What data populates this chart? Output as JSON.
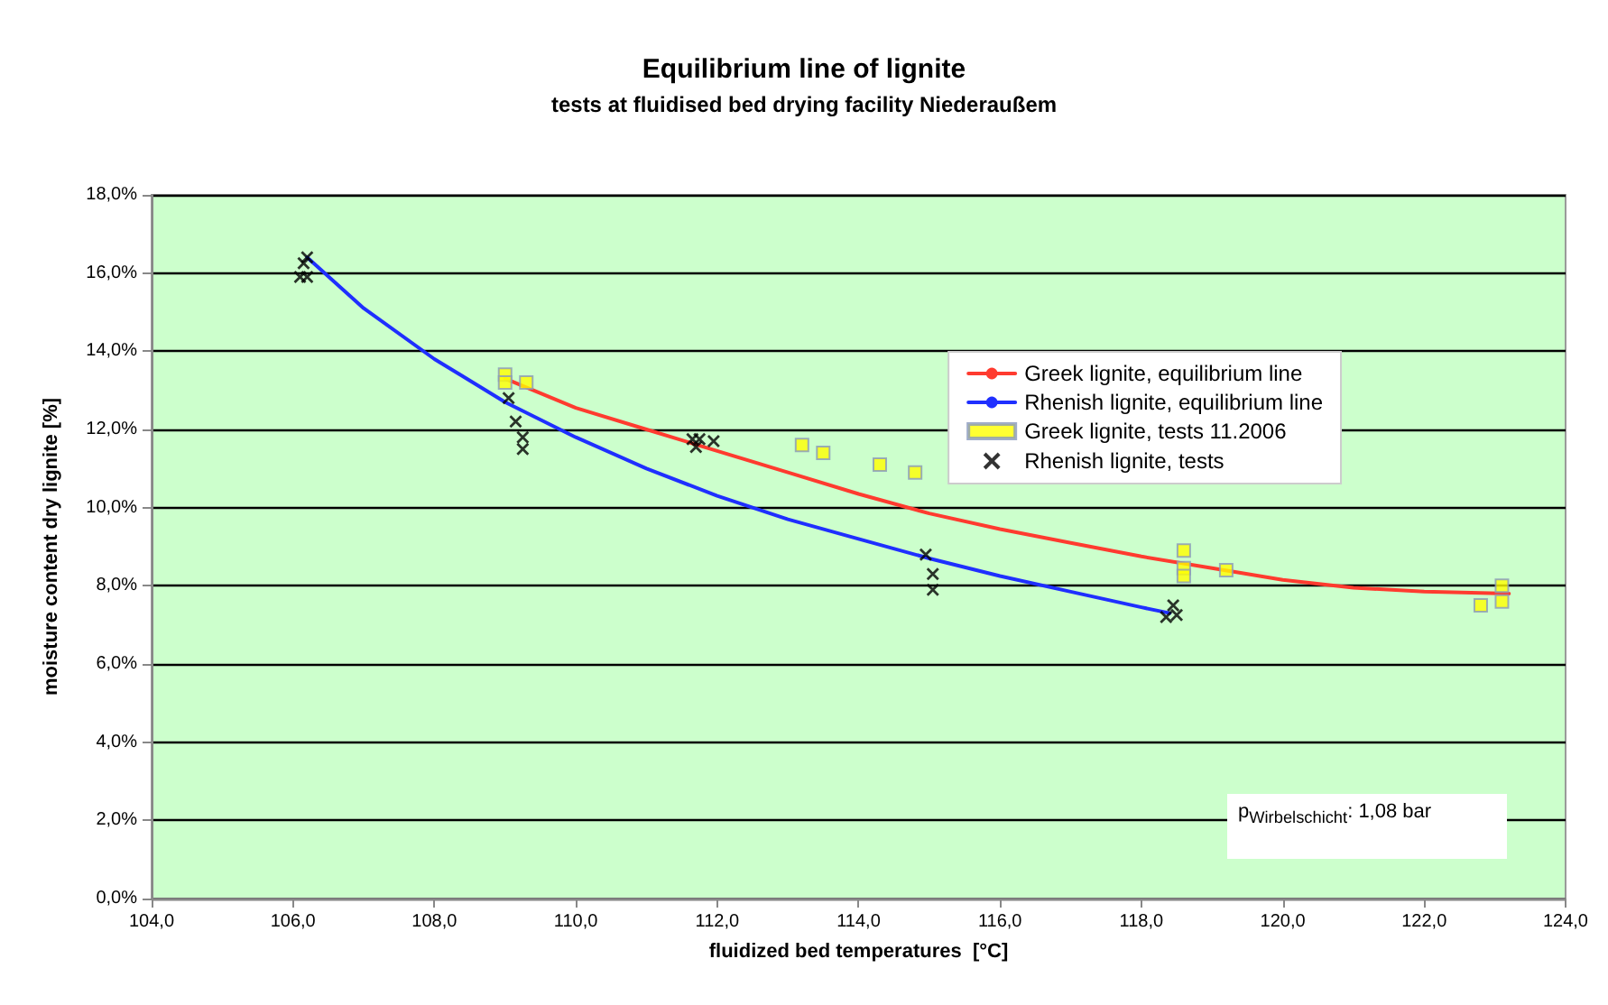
{
  "chart_data": {
    "type": "scatter",
    "title": "Equilibrium line of lignite",
    "subtitle": "tests at fluidised bed drying facility Niederaußem",
    "xlabel": "fluidized bed temperatures  [°C]",
    "ylabel": "moisture content dry lignite [%]",
    "xlim": [
      104,
      124
    ],
    "xticks": [
      {
        "value": 104,
        "label": "104,0"
      },
      {
        "value": 106,
        "label": "106,0"
      },
      {
        "value": 108,
        "label": "108,0"
      },
      {
        "value": 110,
        "label": "110,0"
      },
      {
        "value": 112,
        "label": "112,0"
      },
      {
        "value": 114,
        "label": "114,0"
      },
      {
        "value": 116,
        "label": "116,0"
      },
      {
        "value": 118,
        "label": "118,0"
      },
      {
        "value": 120,
        "label": "120,0"
      },
      {
        "value": 122,
        "label": "122,0"
      },
      {
        "value": 124,
        "label": "124,0"
      }
    ],
    "ylim": [
      0,
      18
    ],
    "yticks": [
      {
        "value": 0,
        "label": "0,0%"
      },
      {
        "value": 2,
        "label": "2,0%"
      },
      {
        "value": 4,
        "label": "4,0%"
      },
      {
        "value": 6,
        "label": "6,0%"
      },
      {
        "value": 8,
        "label": "8,0%"
      },
      {
        "value": 10,
        "label": "10,0%"
      },
      {
        "value": 12,
        "label": "12,0%"
      },
      {
        "value": 14,
        "label": "14,0%"
      },
      {
        "value": 16,
        "label": "16,0%"
      },
      {
        "value": 18,
        "label": "18,0%"
      }
    ],
    "grid": "y",
    "legend": "top right",
    "annotations": [
      "p$_{Wirbelschicht}$: 1,08 bar"
    ],
    "series": [
      {
        "name": "Greek lignite, equilibrium line",
        "type": "line",
        "color": "#ff3b2f",
        "marker": "none",
        "x": [
          109.0,
          110,
          111,
          112,
          113,
          114,
          115,
          116,
          117,
          118,
          119,
          120,
          121,
          122,
          123.2
        ],
        "values": [
          13.3,
          12.55,
          12.0,
          11.45,
          10.9,
          10.35,
          9.85,
          9.45,
          9.1,
          8.75,
          8.45,
          8.15,
          7.95,
          7.85,
          7.8
        ]
      },
      {
        "name": "Rhenish lignite, equilibrium line",
        "type": "line",
        "color": "#1f2fff",
        "marker": "none",
        "x": [
          106.2,
          107,
          108,
          109,
          110,
          111,
          112,
          113,
          114,
          115,
          116,
          117,
          118,
          118.4
        ],
        "values": [
          16.4,
          15.1,
          13.8,
          12.7,
          11.8,
          11.0,
          10.3,
          9.7,
          9.2,
          8.7,
          8.25,
          7.85,
          7.45,
          7.3
        ]
      },
      {
        "name": "Greek lignite, tests 11.2006",
        "color": "#ffff00",
        "marker": "square",
        "x": [
          109.0,
          109.0,
          109.3,
          113.2,
          113.5,
          114.3,
          114.8,
          118.6,
          118.6,
          118.6,
          119.2,
          122.8,
          123.1,
          123.1
        ],
        "values": [
          13.4,
          13.2,
          13.2,
          11.6,
          11.4,
          11.1,
          10.9,
          8.9,
          8.45,
          8.25,
          8.4,
          7.5,
          8.0,
          7.6
        ]
      },
      {
        "name": "Rhenish lignite, tests",
        "color": "#000000",
        "marker": "cross",
        "x": [
          106.2,
          106.15,
          106.2,
          106.1,
          109.05,
          109.15,
          109.25,
          109.25,
          111.65,
          111.75,
          111.95,
          111.7,
          114.95,
          115.05,
          115.05,
          118.45,
          118.35,
          118.5
        ],
        "values": [
          16.4,
          16.25,
          15.9,
          15.9,
          12.8,
          12.2,
          11.8,
          11.5,
          11.75,
          11.75,
          11.7,
          11.55,
          8.8,
          8.3,
          7.9,
          7.5,
          7.2,
          7.25
        ]
      }
    ]
  }
}
